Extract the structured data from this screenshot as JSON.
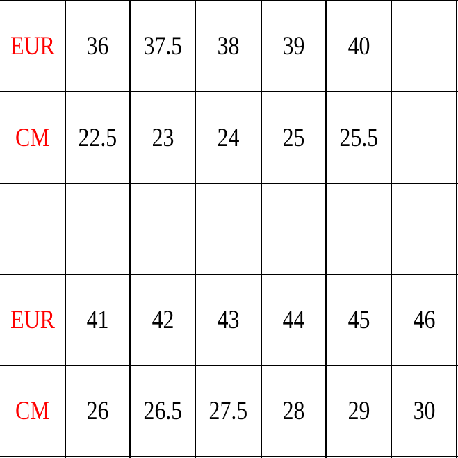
{
  "table": {
    "label_color": "#ff0000",
    "value_color": "#000000",
    "rows": [
      {
        "label": "EUR",
        "values": [
          "36",
          "37.5",
          "38",
          "39",
          "40",
          ""
        ]
      },
      {
        "label": "CM",
        "values": [
          "22.5",
          "23",
          "24",
          "25",
          "25.5",
          ""
        ]
      },
      {
        "label": "",
        "values": [
          "",
          "",
          "",
          "",
          "",
          ""
        ]
      },
      {
        "label": "EUR",
        "values": [
          "41",
          "42",
          "43",
          "44",
          "45",
          "46"
        ]
      },
      {
        "label": "CM",
        "values": [
          "26",
          "26.5",
          "27.5",
          "28",
          "29",
          "30"
        ]
      }
    ]
  }
}
